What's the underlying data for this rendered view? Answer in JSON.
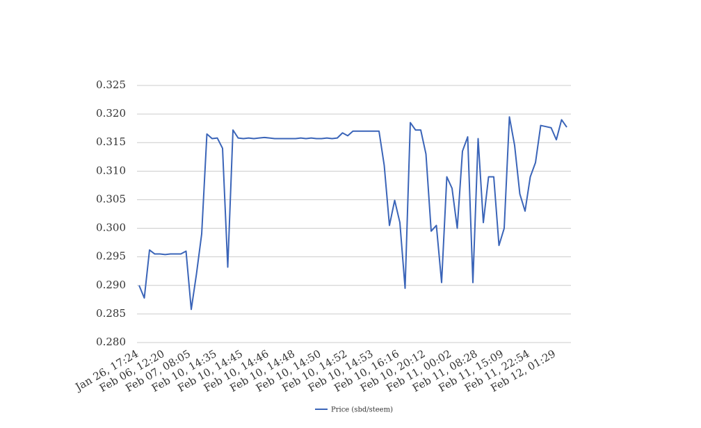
{
  "chart_data": {
    "type": "line",
    "categories": [
      "Jan 26, 17:24",
      null,
      null,
      null,
      null,
      "Feb 06, 12:20",
      null,
      null,
      null,
      null,
      "Feb 07, 08:05",
      null,
      null,
      null,
      null,
      "Feb 10, 14:35",
      null,
      null,
      null,
      null,
      "Feb 10, 14:45",
      null,
      null,
      null,
      null,
      "Feb 10, 14:46",
      null,
      null,
      null,
      null,
      "Feb 10, 14:48",
      null,
      null,
      null,
      null,
      "Feb 10, 14:50",
      null,
      null,
      null,
      null,
      "Feb 10, 14:52",
      null,
      null,
      null,
      null,
      "Feb 10, 14:53",
      null,
      null,
      null,
      null,
      "Feb 10, 16:16",
      null,
      null,
      null,
      null,
      "Feb 10, 20:12",
      null,
      null,
      null,
      null,
      "Feb 11, 00:02",
      null,
      null,
      null,
      null,
      "Feb 11, 08:28",
      null,
      null,
      null,
      null,
      "Feb 11, 15:09",
      null,
      null,
      null,
      null,
      "Feb 11, 22:54",
      null,
      null,
      null,
      null,
      "Feb 12, 01:29",
      null,
      null
    ],
    "series": [
      {
        "name": "Price (sbd/steem)",
        "color": "#3a64b8",
        "values": [
          0.29,
          0.2878,
          0.2962,
          0.2955,
          0.2955,
          0.2954,
          0.2955,
          0.2955,
          0.2955,
          0.296,
          0.2858,
          0.292,
          0.299,
          0.3165,
          0.3157,
          0.3158,
          0.314,
          0.2932,
          0.3172,
          0.3158,
          0.3157,
          0.3158,
          0.3157,
          0.3158,
          0.3159,
          0.3158,
          0.3157,
          0.3157,
          0.3157,
          0.3157,
          0.3157,
          0.3158,
          0.3157,
          0.3158,
          0.3157,
          0.3157,
          0.3158,
          0.3157,
          0.3158,
          0.3167,
          0.3162,
          0.317,
          0.317,
          0.317,
          0.317,
          0.317,
          0.317,
          0.311,
          0.3005,
          0.3049,
          0.301,
          0.2895,
          0.3185,
          0.3172,
          0.3172,
          0.313,
          0.2995,
          0.3005,
          0.2905,
          0.309,
          0.307,
          0.3,
          0.3135,
          0.316,
          0.2905,
          0.3157,
          0.301,
          0.309,
          0.309,
          0.297,
          0.3,
          0.3195,
          0.3145,
          0.306,
          0.303,
          0.309,
          0.3115,
          0.318,
          0.3178,
          0.3176,
          0.3155,
          0.319,
          0.3177
        ]
      }
    ],
    "ylim": [
      0.28,
      0.325
    ],
    "yticks": [
      {
        "value": 0.28,
        "label": "0.280"
      },
      0.285,
      {
        "value": 0.29,
        "label": "0.290"
      },
      0.295,
      {
        "value": 0.3,
        "label": "0.300"
      },
      0.305,
      {
        "value": 0.31,
        "label": "0.310"
      },
      0.315,
      {
        "value": 0.32,
        "label": "0.320"
      },
      0.325
    ],
    "grid": true,
    "legend": "bottom"
  }
}
